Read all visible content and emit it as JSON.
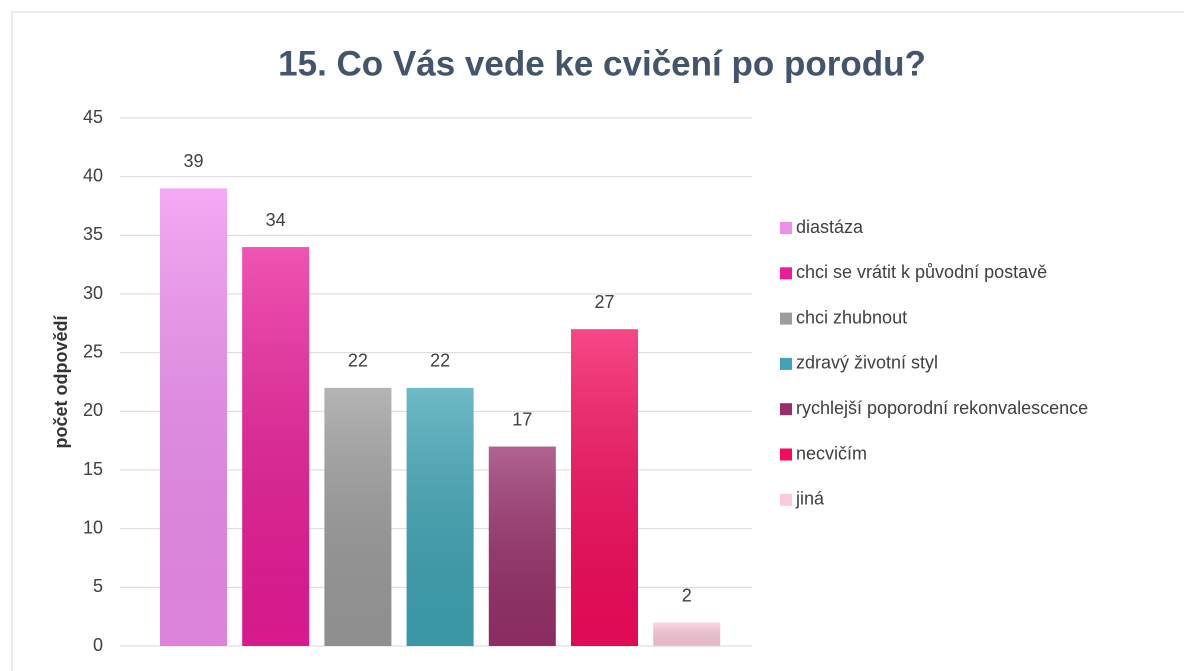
{
  "chart_data": {
    "type": "bar",
    "title": "15. Co Vás vede ke cvičení po porodu?",
    "y_label": "počet odpovědí",
    "series": [
      {
        "name": "diastáza",
        "color": "#f08ef0",
        "values": [
          39
        ]
      },
      {
        "name": "chci se vrátit k původní postavě",
        "color": "#ea1c99",
        "values": [
          34
        ]
      },
      {
        "name": "chci zhubnout",
        "color": "#9c9c9c",
        "values": [
          22
        ]
      },
      {
        "name": "zdravý životní styl",
        "color": "#3fa4b5",
        "values": [
          22
        ]
      },
      {
        "name": "rychlejší poporodní rekonvalescence",
        "color": "#97306a",
        "values": [
          17
        ]
      },
      {
        "name": "necvičím",
        "color": "#f50a5e",
        "values": [
          27
        ]
      },
      {
        "name": "jiná",
        "color": "#fccbdb",
        "values": [
          2
        ]
      }
    ],
    "ylim": [
      0,
      45
    ],
    "yticks": [
      0,
      5,
      10,
      15,
      20,
      25,
      30,
      35,
      40,
      45
    ],
    "grid": true,
    "legend": "right"
  }
}
